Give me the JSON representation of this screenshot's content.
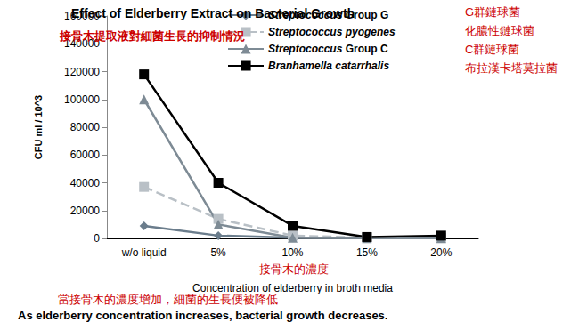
{
  "chart_data": {
    "type": "line",
    "title": "Effect of Elderberry Extract on Bacterial Growth",
    "subtitle": "接骨木提取液對細菌生長的抑制情況",
    "x_label": "Concentration of elderberry in broth media",
    "y_label": "CFU ml / 10^3",
    "categories": [
      "w/o liquid",
      "5%",
      "10%",
      "15%",
      "20%"
    ],
    "series": [
      {
        "name": "Streptococcus Group G",
        "color": "#6b7d8c",
        "marker": "diamond",
        "line_style": "solid",
        "values": [
          9000,
          2000,
          500,
          300,
          200
        ]
      },
      {
        "name": "Streptococcus pyogenes",
        "color": "#b9c0c6",
        "marker": "square",
        "line_style": "dashed",
        "values": [
          37000,
          14000,
          2000,
          500,
          300
        ]
      },
      {
        "name": "Streptococcus Group C",
        "color": "#7e8b95",
        "marker": "triangle",
        "line_style": "solid",
        "values": [
          100000,
          10000,
          500,
          200,
          100
        ]
      },
      {
        "name": "Branhamella catarrhalis",
        "color": "#000000",
        "marker": "square",
        "line_style": "solid",
        "values": [
          118000,
          40000,
          9000,
          1000,
          2000
        ]
      }
    ],
    "ylim": [
      0,
      160000
    ],
    "yticks": [
      0,
      20000,
      40000,
      60000,
      80000,
      100000,
      120000,
      140000,
      160000
    ],
    "grid": false,
    "legend": "top right",
    "annotations": [
      "G群鏈球菌",
      "化膿性鏈球菌",
      "C群鏈球菌",
      "布拉漢卡塔莫拉菌",
      "接骨木的濃度",
      "當接骨木的濃度增加，細菌的生長便被降低",
      "As elderberry concentration increases, bacterial growth decreases."
    ]
  }
}
